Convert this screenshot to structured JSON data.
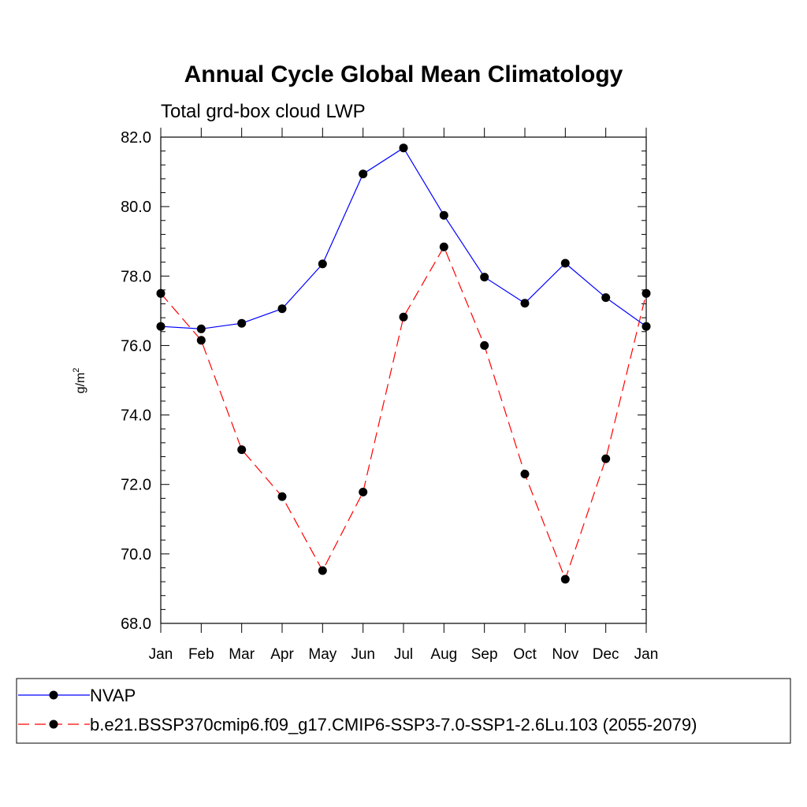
{
  "chart_data": {
    "type": "line",
    "title": "Annual Cycle Global Mean Climatology",
    "subtitle": "Total grd-box cloud LWP",
    "xlabel": "",
    "ylabel": "g/m",
    "ylabel_superscript": "2",
    "ylim": [
      68.0,
      82.0
    ],
    "yticks": [
      "68.0",
      "70.0",
      "72.0",
      "74.0",
      "76.0",
      "78.0",
      "80.0",
      "82.0"
    ],
    "ytick_values": [
      68,
      70,
      72,
      74,
      76,
      78,
      80,
      82
    ],
    "categories": [
      "Jan",
      "Feb",
      "Mar",
      "Apr",
      "May",
      "Jun",
      "Jul",
      "Aug",
      "Sep",
      "Oct",
      "Nov",
      "Dec",
      "Jan"
    ],
    "series": [
      {
        "name": "NVAP",
        "color": "#0000ff",
        "dashed": false,
        "values": [
          76.55,
          76.48,
          76.64,
          77.06,
          78.35,
          80.94,
          81.69,
          79.75,
          77.97,
          77.22,
          78.37,
          77.38,
          76.55
        ]
      },
      {
        "name": "b.e21.BSSP370cmip6.f09_g17.CMIP6-SSP3-7.0-SSP1-2.6Lu.103 (2055-2079)",
        "color": "#ff0000",
        "dashed": true,
        "values": [
          77.5,
          76.15,
          73.0,
          71.65,
          69.52,
          71.78,
          76.82,
          78.84,
          76.0,
          72.3,
          69.27,
          72.74,
          77.5
        ]
      }
    ],
    "legend_position": "bottom"
  }
}
